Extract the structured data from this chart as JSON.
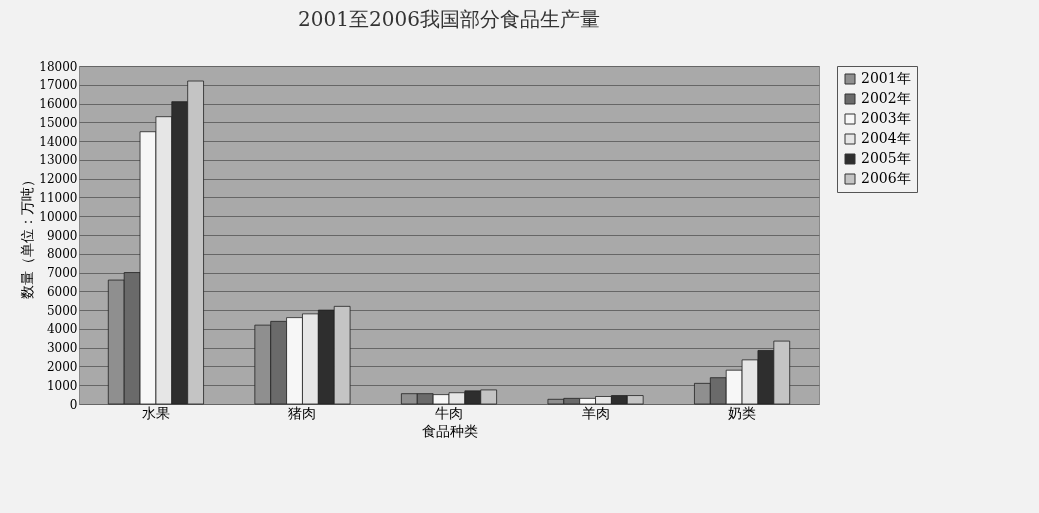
{
  "chart_data": {
    "type": "bar",
    "title": "2001至2006我国部分食品生产量",
    "xlabel": "食品种类",
    "ylabel": "数量（单位：万吨）",
    "categories": [
      "水果",
      "猪肉",
      "牛肉",
      "羊肉",
      "奶类"
    ],
    "series": [
      {
        "name": "2001年",
        "color": "#8f8f8f",
        "values": [
          6600,
          4200,
          550,
          250,
          1100
        ]
      },
      {
        "name": "2002年",
        "color": "#6a6a6a",
        "values": [
          7000,
          4400,
          550,
          300,
          1400
        ]
      },
      {
        "name": "2003年",
        "color": "#f7f7f7",
        "values": [
          14500,
          4600,
          500,
          300,
          1800
        ]
      },
      {
        "name": "2004年",
        "color": "#e6e6e6",
        "values": [
          15300,
          4800,
          600,
          400,
          2350
        ]
      },
      {
        "name": "2005年",
        "color": "#2e2e2e",
        "values": [
          16100,
          5000,
          700,
          450,
          2850
        ]
      },
      {
        "name": "2006年",
        "color": "#c4c4c4",
        "values": [
          17200,
          5200,
          750,
          450,
          3350
        ]
      }
    ],
    "ylim": [
      0,
      18000
    ],
    "yticks": [
      0,
      1000,
      2000,
      3000,
      4000,
      5000,
      6000,
      7000,
      8000,
      9000,
      10000,
      11000,
      12000,
      13000,
      14000,
      15000,
      16000,
      17000,
      18000
    ],
    "grid": "y",
    "legend": "right"
  }
}
